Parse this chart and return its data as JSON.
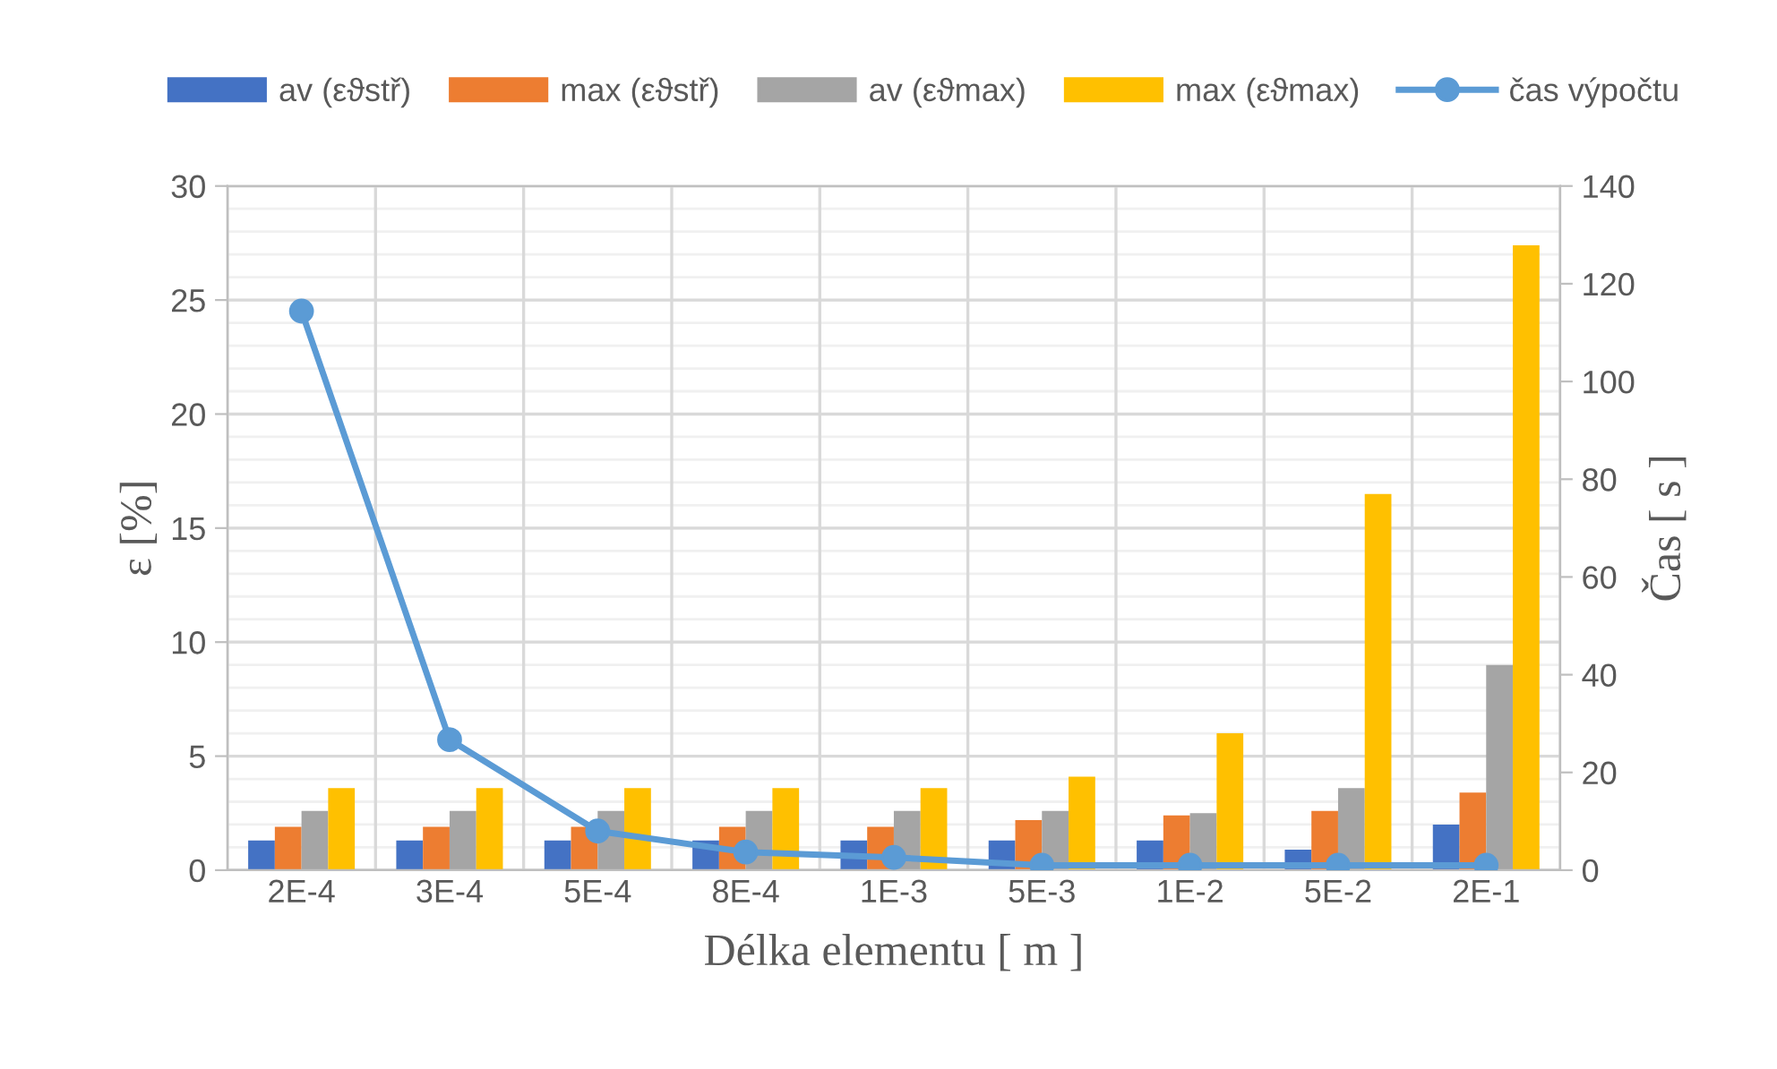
{
  "chart_data": {
    "type": "bar",
    "xlabel": "Délka elementu [ m ]",
    "ylabel": "ε [%]",
    "y2label": "Čas [ s ]",
    "categories": [
      "2E-4",
      "3E-4",
      "5E-4",
      "8E-4",
      "1E-3",
      "5E-3",
      "1E-2",
      "5E-2",
      "2E-1"
    ],
    "series": [
      {
        "name": "av (εϑstř)",
        "color": "#4472c4",
        "values": [
          1.3,
          1.3,
          1.3,
          1.3,
          1.3,
          1.3,
          1.3,
          0.9,
          2.0
        ]
      },
      {
        "name": "max (εϑstř)",
        "color": "#ed7d31",
        "values": [
          1.9,
          1.9,
          1.9,
          1.9,
          1.9,
          2.2,
          2.4,
          2.6,
          3.4
        ]
      },
      {
        "name": "av (εϑmax)",
        "color": "#a5a5a5",
        "values": [
          2.6,
          2.6,
          2.6,
          2.6,
          2.6,
          2.6,
          2.5,
          3.6,
          9.0
        ]
      },
      {
        "name": "max (εϑmax)",
        "color": "#ffc000",
        "values": [
          3.6,
          3.6,
          3.6,
          3.6,
          3.6,
          4.1,
          6.0,
          16.5,
          27.4
        ]
      },
      {
        "name": "čas výpočtu",
        "type": "line",
        "axis": "y2",
        "marker": "circle",
        "color": "#5b9bd5",
        "values": [
          114.4,
          26.7,
          8,
          3.7,
          2.6,
          1,
          1,
          1,
          1
        ]
      }
    ],
    "ylim": [
      0,
      30
    ],
    "yticks": [
      0,
      5,
      10,
      15,
      20,
      25,
      30
    ],
    "y2lim": [
      0,
      140
    ],
    "y2ticks": [
      0,
      20,
      40,
      60,
      80,
      100,
      120,
      140
    ],
    "grid": true,
    "legend": "top"
  }
}
